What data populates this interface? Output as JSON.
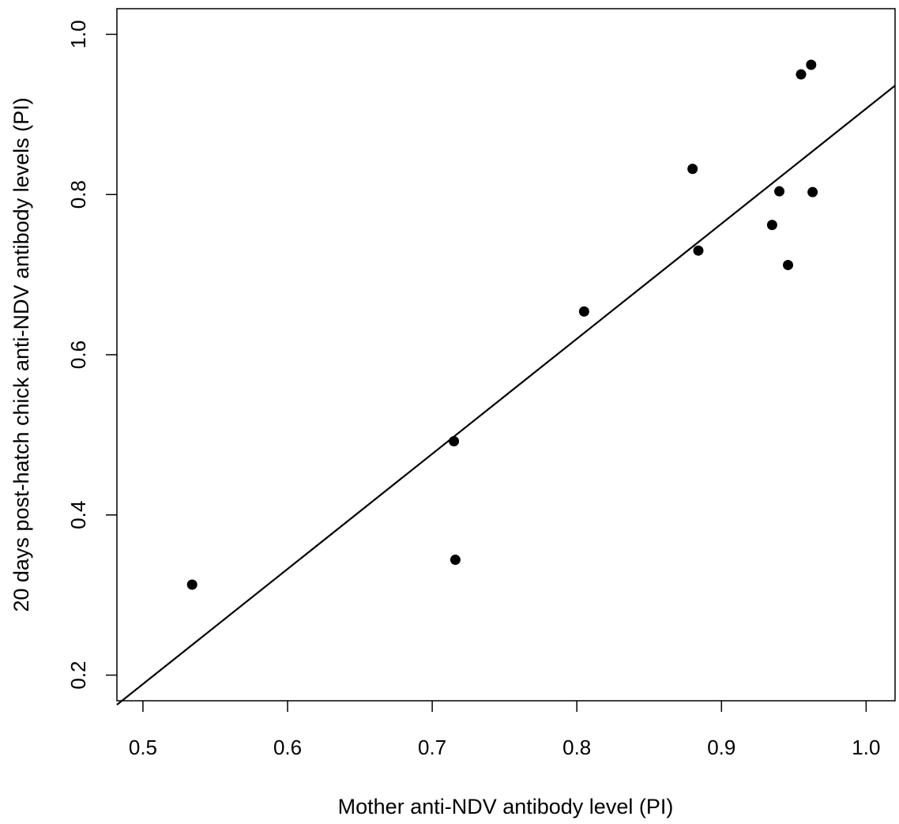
{
  "chart_data": {
    "type": "scatter",
    "title": "",
    "xlabel": "Mother anti-NDV antibody level (PI)",
    "ylabel": "20 days post-hatch chick anti-NDV antibody levels (PI)",
    "xlim": [
      0.482,
      1.02
    ],
    "ylim": [
      0.168,
      1.032
    ],
    "x_ticks": [
      0.5,
      0.6,
      0.7,
      0.8,
      0.9,
      1.0
    ],
    "x_tick_labels": [
      "0.5",
      "0.6",
      "0.7",
      "0.8",
      "0.9",
      "1.0"
    ],
    "y_ticks": [
      0.2,
      0.4,
      0.6,
      0.8,
      1.0
    ],
    "y_tick_labels": [
      "0.2",
      "0.4",
      "0.6",
      "0.8",
      "1.0"
    ],
    "grid": false,
    "points": [
      {
        "x": 0.534,
        "y": 0.313
      },
      {
        "x": 0.715,
        "y": 0.492
      },
      {
        "x": 0.716,
        "y": 0.344
      },
      {
        "x": 0.805,
        "y": 0.654
      },
      {
        "x": 0.88,
        "y": 0.832
      },
      {
        "x": 0.884,
        "y": 0.73
      },
      {
        "x": 0.935,
        "y": 0.762
      },
      {
        "x": 0.94,
        "y": 0.804
      },
      {
        "x": 0.946,
        "y": 0.712
      },
      {
        "x": 0.955,
        "y": 0.95
      },
      {
        "x": 0.962,
        "y": 0.962
      },
      {
        "x": 0.963,
        "y": 0.803
      }
    ],
    "fit_line": {
      "x": [
        0.482,
        1.02
      ],
      "y": [
        0.163,
        0.936
      ]
    },
    "colors": {
      "points": "#000000",
      "line": "#000000",
      "frame": "#000000"
    }
  }
}
